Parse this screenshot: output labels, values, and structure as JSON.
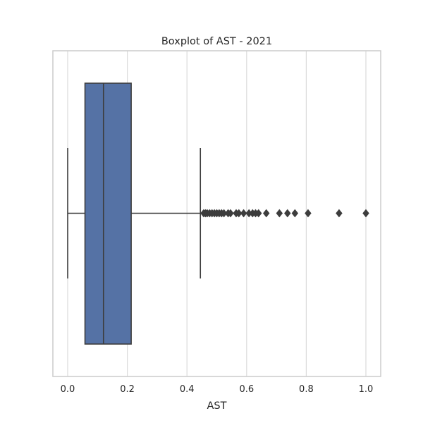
{
  "chart_data": {
    "type": "boxplot",
    "title": "Boxplot of AST - 2021",
    "xlabel": "AST",
    "ylabel": "",
    "xlim": [
      -0.05,
      1.05
    ],
    "xticks": [
      0.0,
      0.2,
      0.4,
      0.6,
      0.8,
      1.0
    ],
    "xtick_labels": [
      "0.0",
      "0.2",
      "0.4",
      "0.6",
      "0.8",
      "1.0"
    ],
    "grid": "vertical",
    "orientation": "horizontal",
    "box": {
      "whisker_low": 0.0,
      "q1": 0.058,
      "median": 0.12,
      "q3": 0.213,
      "whisker_high": 0.445,
      "color": "#5572a5",
      "line_color": "#3d3d3d"
    },
    "outliers": [
      0.456,
      0.462,
      0.468,
      0.476,
      0.484,
      0.492,
      0.5,
      0.508,
      0.516,
      0.524,
      0.538,
      0.546,
      0.565,
      0.574,
      0.59,
      0.608,
      0.62,
      0.63,
      0.64,
      0.666,
      0.71,
      0.737,
      0.762,
      0.806,
      0.91,
      1.0
    ]
  }
}
